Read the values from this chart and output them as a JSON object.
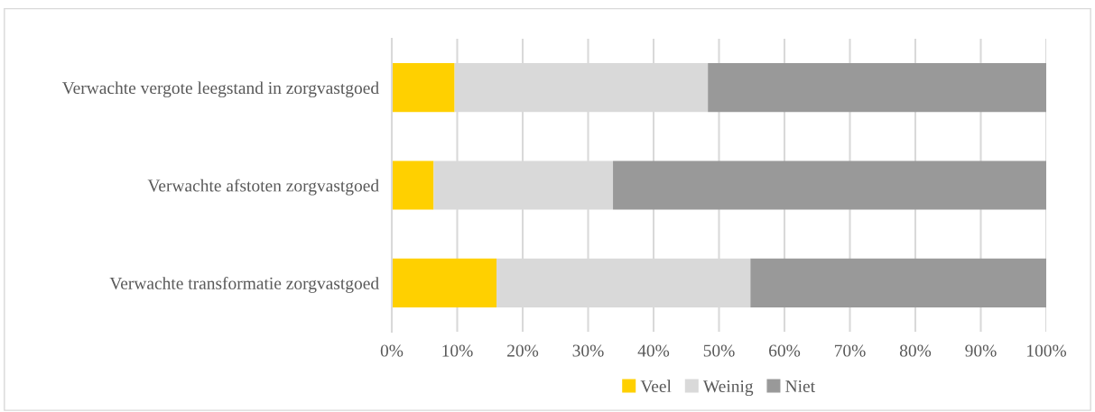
{
  "chart_data": {
    "type": "bar",
    "orientation": "horizontal",
    "stacked": true,
    "categories": [
      "Verwachte vergote leegstand in zorgvastgoed",
      "Verwachte afstoten zorgvastgoed",
      "Verwachte transformatie zorgvastgoed"
    ],
    "series": [
      {
        "name": "Veel",
        "color": "#ffd000",
        "values": [
          9.6,
          6.4,
          16.0
        ]
      },
      {
        "name": "Weinig",
        "color": "#d9d9d9",
        "values": [
          38.7,
          27.4,
          38.8
        ]
      },
      {
        "name": "Niet",
        "color": "#999999",
        "values": [
          51.7,
          66.2,
          45.2
        ]
      }
    ],
    "xlim": [
      0,
      100
    ],
    "xticks": [
      {
        "value": 0,
        "label": "0%"
      },
      {
        "value": 10,
        "label": "10%"
      },
      {
        "value": 20,
        "label": "20%"
      },
      {
        "value": 30,
        "label": "30%"
      },
      {
        "value": 40,
        "label": "40%"
      },
      {
        "value": 50,
        "label": "50%"
      },
      {
        "value": 60,
        "label": "60%"
      },
      {
        "value": 70,
        "label": "70%"
      },
      {
        "value": 80,
        "label": "80%"
      },
      {
        "value": 90,
        "label": "90%"
      },
      {
        "value": 100,
        "label": "100%"
      }
    ],
    "grid": "x",
    "legend": "bottom"
  }
}
